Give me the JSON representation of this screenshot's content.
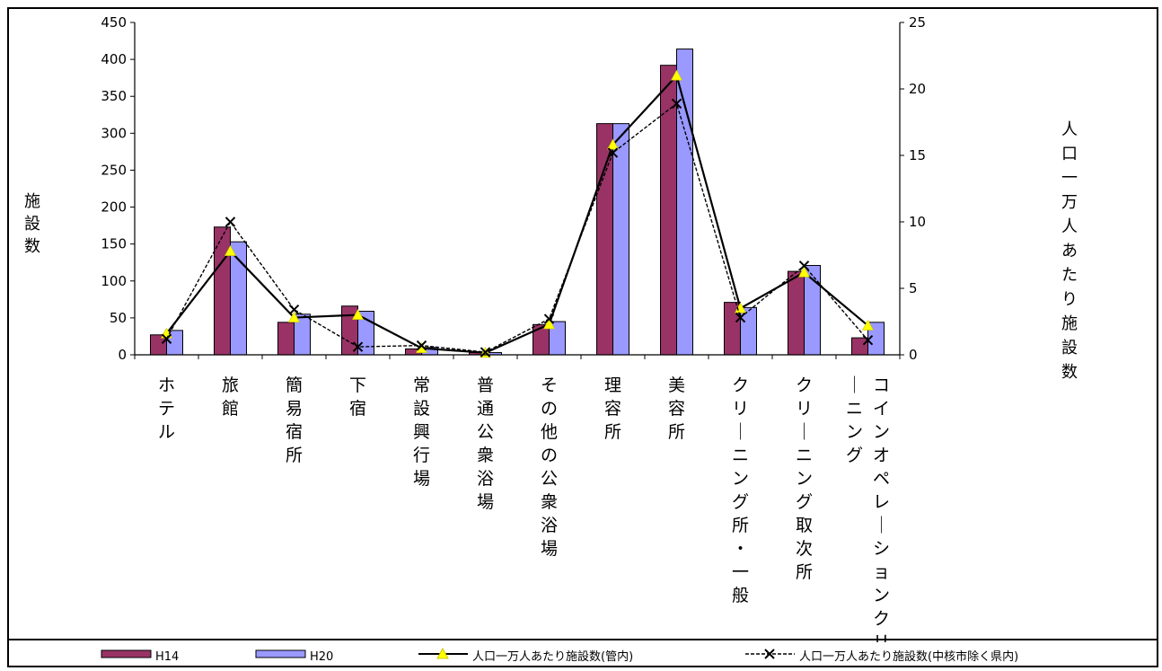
{
  "chart_data": {
    "type": "bar",
    "title": "",
    "categories": [
      "ホテル",
      "旅館",
      "簡易宿所",
      "下宿",
      "常設興行場",
      "普通公衆浴場",
      "その他の公衆浴場",
      "理容所",
      "美容所",
      "クリーニング所・一般",
      "クリーニング取次所",
      "コインオペレーションクリーニング"
    ],
    "ylabel_left": "施設数",
    "ylabel_right": "人口一万人あたり施設数",
    "ylim_left": [
      0,
      450
    ],
    "ylim_right": [
      0,
      25
    ],
    "yticks_left": [
      0,
      50,
      100,
      150,
      200,
      250,
      300,
      350,
      400,
      450
    ],
    "yticks_right": [
      0,
      5,
      10,
      15,
      20,
      25
    ],
    "series": [
      {
        "name": "H14",
        "kind": "bar",
        "axis": "left",
        "color": "#993366",
        "values": [
          27,
          173,
          44,
          66,
          8,
          3,
          41,
          313,
          392,
          71,
          113,
          23
        ]
      },
      {
        "name": "H20",
        "kind": "bar",
        "axis": "left",
        "color": "#9999FF",
        "values": [
          33,
          153,
          55,
          59,
          10,
          3,
          45,
          313,
          414,
          64,
          121,
          44
        ]
      },
      {
        "name": "人口一万人あたり施設数(管内)",
        "kind": "line",
        "axis": "right",
        "color": "#000000",
        "marker": "triangle-yellow",
        "values": [
          1.6,
          7.8,
          2.8,
          3.0,
          0.5,
          0.15,
          2.3,
          15.8,
          21.0,
          3.5,
          6.2,
          2.2
        ]
      },
      {
        "name": "人口一万人あたり施設数(中核市除く県内)",
        "kind": "line-dashed",
        "axis": "right",
        "color": "#000000",
        "marker": "x",
        "values": [
          1.2,
          10.0,
          3.4,
          0.6,
          0.7,
          0.2,
          2.7,
          15.2,
          18.9,
          2.8,
          6.7,
          1.1
        ]
      }
    ],
    "legend_position": "bottom",
    "legend_labels": [
      "H14",
      "H20",
      "人口一万人あたり施設数(管内)",
      "人口一万人あたり施設数(中核市除く県内)"
    ]
  }
}
